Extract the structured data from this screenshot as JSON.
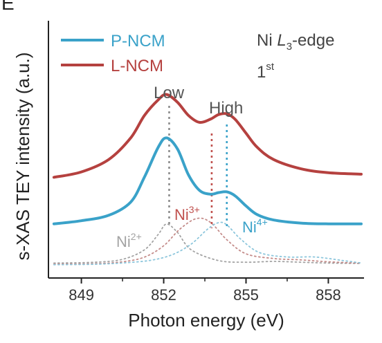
{
  "chart_data": {
    "type": "line",
    "panel_label": "E",
    "xlabel": "Photon energy (eV)",
    "ylabel": "s-XAS TEY intensity (a.u.)",
    "xlim": [
      847.8,
      859.3
    ],
    "x_ticks": [
      849,
      852,
      855,
      858
    ],
    "x_tick_labels": [
      "849",
      "852",
      "855",
      "858"
    ],
    "legend_position": "top-left",
    "series": [
      {
        "name": "L-NCM",
        "color": "#b5413f",
        "line": "solid",
        "x": [
          848.0,
          849.0,
          850.0,
          850.8,
          851.3,
          851.8,
          852.1,
          852.5,
          852.9,
          853.3,
          853.7,
          854.0,
          854.3,
          854.6,
          855.0,
          855.4,
          856.0,
          857.0,
          858.0,
          859.2
        ],
        "values": [
          0.05,
          0.12,
          0.28,
          0.56,
          0.85,
          1.05,
          1.12,
          1.02,
          0.85,
          0.76,
          0.8,
          0.86,
          0.87,
          0.8,
          0.62,
          0.44,
          0.28,
          0.16,
          0.11,
          0.09
        ]
      },
      {
        "name": "P-NCM",
        "color": "#3aa2c9",
        "line": "solid",
        "x": [
          848.0,
          849.0,
          850.0,
          850.8,
          851.3,
          851.8,
          852.1,
          852.5,
          852.9,
          853.3,
          853.7,
          854.0,
          854.3,
          854.6,
          855.0,
          855.4,
          856.0,
          857.0,
          858.0,
          859.2
        ],
        "values": [
          0.02,
          0.06,
          0.13,
          0.3,
          0.62,
          1.0,
          1.12,
          0.98,
          0.65,
          0.45,
          0.4,
          0.42,
          0.43,
          0.38,
          0.25,
          0.14,
          0.07,
          0.03,
          0.02,
          0.02
        ]
      },
      {
        "name": "Ni2+",
        "color": "#a3a3a3",
        "line": "dotted",
        "x": [
          848.0,
          849.5,
          850.5,
          851.3,
          851.8,
          852.1,
          852.5,
          853.0,
          854.0,
          855.0,
          856.0,
          857.0,
          858.0,
          859.2
        ],
        "values": [
          0.06,
          0.08,
          0.15,
          0.38,
          0.75,
          1.0,
          0.8,
          0.38,
          0.12,
          0.08,
          0.1,
          0.08,
          0.06,
          0.05
        ]
      },
      {
        "name": "Ni3+",
        "color": "#c48b89",
        "line": "dotted",
        "x": [
          848.0,
          849.5,
          850.5,
          851.3,
          852.0,
          852.6,
          853.2,
          853.7,
          854.3,
          855.0,
          856.0,
          857.0,
          858.0,
          859.2
        ],
        "values": [
          0.03,
          0.04,
          0.08,
          0.18,
          0.42,
          0.78,
          1.0,
          0.92,
          0.55,
          0.25,
          0.15,
          0.12,
          0.08,
          0.05
        ]
      },
      {
        "name": "Ni4+",
        "color": "#8cc6dc",
        "line": "dotted",
        "x": [
          848.0,
          849.5,
          850.5,
          851.5,
          852.3,
          853.0,
          853.6,
          854.0,
          854.3,
          854.8,
          855.5,
          856.5,
          857.5,
          858.5,
          859.2
        ],
        "values": [
          0.02,
          0.03,
          0.06,
          0.12,
          0.25,
          0.5,
          0.85,
          1.0,
          0.95,
          0.62,
          0.3,
          0.2,
          0.2,
          0.12,
          0.06
        ]
      }
    ],
    "annotations": {
      "edge_element": "Ni",
      "edge_symbol": "L",
      "edge_subscript": "3",
      "edge_suffix": "-edge",
      "cycle_number": "1",
      "cycle_suffix": "st",
      "low_label": "Low",
      "high_label": "High",
      "ni2_base": "Ni",
      "ni2_sup": "2+",
      "ni3_base": "Ni",
      "ni3_sup": "3+",
      "ni4_base": "Ni",
      "ni4_sup": "4+"
    },
    "reference_lines": [
      {
        "x": 852.2,
        "color": "#8c8c8c",
        "label": "Low"
      },
      {
        "x": 853.75,
        "color": "#c0504d",
        "label": "Ni3+"
      },
      {
        "x": 854.3,
        "color": "#3aa2c9",
        "label": "High"
      }
    ]
  }
}
